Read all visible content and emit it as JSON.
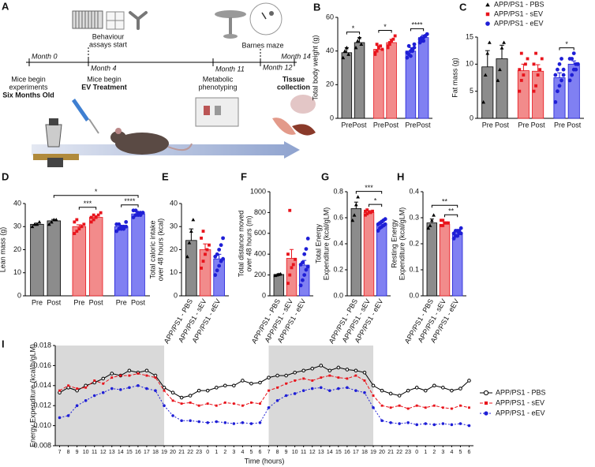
{
  "timeline": {
    "panel": "A",
    "months": [
      "Month 0",
      "Month 4",
      "Month 11",
      "Month 12",
      "Month 14"
    ],
    "behaviour": [
      "Behaviour",
      "assays start"
    ],
    "barnes": "Barnes maze",
    "start": [
      "Mice begin",
      "experiments",
      "Six Months Old"
    ],
    "treatment": [
      "Mice begin",
      "EV Treatment"
    ],
    "metabolic": [
      "Metabolic",
      "phenotyping"
    ],
    "tissue": [
      "Tissue",
      "collection"
    ]
  },
  "chart_data": [
    {
      "type": "bar",
      "panel": "B",
      "ylabel": [
        "Total body weight (g)"
      ],
      "categories": [
        "Pre",
        "Post",
        "Pre",
        "Post",
        "Pre",
        "Post"
      ],
      "values": [
        39,
        45,
        41,
        45,
        40,
        48
      ],
      "errors": [
        3,
        3,
        2,
        2,
        2,
        1.5
      ],
      "points": [
        [
          36,
          40,
          42,
          38
        ],
        [
          42,
          46,
          48,
          44
        ],
        [
          38,
          40,
          42,
          43,
          41,
          39,
          44
        ],
        [
          42,
          44,
          46,
          47,
          49,
          43,
          45
        ],
        [
          36,
          38,
          40,
          41,
          42,
          39,
          43,
          37,
          40,
          44
        ],
        [
          45,
          46,
          48,
          49,
          50,
          47,
          48,
          46,
          49,
          50
        ]
      ],
      "colors": [
        "#8c8c8c",
        "#8c8c8c",
        "#f28b8b",
        "#f28b8b",
        "#8080f2",
        "#8080f2"
      ],
      "point_colors": [
        "#000000",
        "#000000",
        "#e8141c",
        "#e8141c",
        "#1f1fd6",
        "#1f1fd6"
      ],
      "markers": [
        "triangle",
        "triangle",
        "square",
        "square",
        "circle",
        "circle"
      ],
      "ylim": [
        0,
        60
      ],
      "yticks": [
        0,
        20,
        40,
        60
      ],
      "significance": [
        {
          "label": "*",
          "between": [
            0,
            1
          ]
        },
        {
          "label": "*",
          "between": [
            2,
            3
          ]
        },
        {
          "label": "****",
          "between": [
            4,
            5
          ]
        }
      ]
    },
    {
      "type": "bar",
      "panel": "C",
      "ylabel": [
        "Fat mass (g)"
      ],
      "categories": [
        "Pre",
        "Post",
        "Pre",
        "Post",
        "Pre",
        "Post"
      ],
      "values": [
        9.5,
        11,
        8.8,
        8.7,
        7.5,
        10
      ],
      "errors": [
        3,
        2.5,
        1.2,
        1.2,
        0.9,
        0.6
      ],
      "points": [
        [
          3,
          8,
          12,
          14
        ],
        [
          7,
          9,
          13,
          14
        ],
        [
          5,
          7,
          8,
          10,
          11,
          9,
          12
        ],
        [
          5,
          6,
          8,
          9,
          11,
          10,
          12
        ],
        [
          3,
          5,
          6,
          7,
          8,
          8,
          9,
          10,
          11,
          9
        ],
        [
          7,
          8,
          9,
          10,
          10,
          11,
          11,
          12,
          9,
          10
        ]
      ],
      "colors": [
        "#8c8c8c",
        "#8c8c8c",
        "#f28b8b",
        "#f28b8b",
        "#8080f2",
        "#8080f2"
      ],
      "point_colors": [
        "#000000",
        "#000000",
        "#e8141c",
        "#e8141c",
        "#1f1fd6",
        "#1f1fd6"
      ],
      "markers": [
        "triangle",
        "triangle",
        "square",
        "square",
        "circle",
        "circle"
      ],
      "ylim": [
        0,
        15
      ],
      "yticks": [
        0,
        5,
        10,
        15
      ],
      "significance": [
        {
          "label": "*",
          "between": [
            4,
            5
          ]
        }
      ],
      "legend": {
        "labels": [
          "APP/PS1 - PBS",
          "APP/PS1 - sEV",
          "APP/PS1 - eEV"
        ],
        "colors": [
          "#000000",
          "#e8141c",
          "#1f1fd6"
        ],
        "markers": [
          "triangle",
          "square",
          "circle"
        ]
      }
    },
    {
      "type": "bar",
      "panel": "D",
      "ylabel": [
        "Lean mass (g)"
      ],
      "categories": [
        "Pre",
        "Post",
        "Pre",
        "Post",
        "Pre",
        "Post"
      ],
      "values": [
        31,
        32.5,
        30,
        34,
        30,
        35.5
      ],
      "errors": [
        0.5,
        0.6,
        0.8,
        0.7,
        0.5,
        0.5
      ],
      "points": [
        [
          30,
          31,
          31,
          32
        ],
        [
          31,
          32,
          33,
          33
        ],
        [
          27,
          28,
          29,
          30,
          31,
          32,
          33
        ],
        [
          32,
          33,
          34,
          35,
          36,
          34,
          35
        ],
        [
          28,
          29,
          29,
          30,
          30,
          31,
          31,
          30,
          29,
          32
        ],
        [
          34,
          35,
          35,
          36,
          36,
          37,
          37,
          36,
          35,
          36
        ]
      ],
      "colors": [
        "#8c8c8c",
        "#8c8c8c",
        "#f28b8b",
        "#f28b8b",
        "#8080f2",
        "#8080f2"
      ],
      "point_colors": [
        "#000000",
        "#000000",
        "#e8141c",
        "#e8141c",
        "#1f1fd6",
        "#1f1fd6"
      ],
      "markers": [
        "triangle",
        "triangle",
        "square",
        "square",
        "circle",
        "circle"
      ],
      "ylim": [
        0,
        40
      ],
      "yticks": [
        0,
        10,
        20,
        30,
        40
      ],
      "significance": [
        {
          "label": "***",
          "between": [
            2,
            3
          ]
        },
        {
          "label": "****",
          "between": [
            4,
            5
          ]
        },
        {
          "label": "*",
          "between": [
            1,
            5
          ]
        }
      ]
    },
    {
      "type": "bar",
      "panel": "E",
      "ylabel": [
        "Total caloric intake",
        "over 48 hours (kcal)"
      ],
      "categories": [
        "APP/PS1 - PBS",
        "APP/PS1 - sEV",
        "APP/PS1 - eEV"
      ],
      "values": [
        24,
        20,
        16
      ],
      "errors": [
        5,
        2.5,
        2
      ],
      "points": [
        [
          17,
          23,
          28,
          33
        ],
        [
          12,
          15,
          18,
          20,
          22,
          25,
          28
        ],
        [
          9,
          11,
          13,
          15,
          16,
          17,
          18,
          20,
          22,
          25
        ]
      ],
      "colors": [
        "#8c8c8c",
        "#f28b8b",
        "#8080f2"
      ],
      "point_colors": [
        "#000000",
        "#e8141c",
        "#1f1fd6"
      ],
      "markers": [
        "triangle",
        "square",
        "circle"
      ],
      "ylim": [
        0,
        40
      ],
      "yticks": [
        0,
        10,
        20,
        30,
        40
      ],
      "significance": []
    },
    {
      "type": "bar",
      "panel": "F",
      "ylabel": [
        "Total distance moved",
        "over 48 hours (m)"
      ],
      "categories": [
        "APP/PS1 - PBS",
        "APP/PS1 - sEV",
        "APP/PS1 - eEV"
      ],
      "values": [
        205,
        360,
        295
      ],
      "errors": [
        8,
        85,
        45
      ],
      "points": [
        [
          195,
          200,
          205,
          210
        ],
        [
          120,
          200,
          270,
          300,
          350,
          400,
          820
        ],
        [
          100,
          150,
          200,
          250,
          280,
          300,
          320,
          400,
          450,
          550
        ]
      ],
      "colors": [
        "#8c8c8c",
        "#f28b8b",
        "#8080f2"
      ],
      "point_colors": [
        "#000000",
        "#e8141c",
        "#1f1fd6"
      ],
      "markers": [
        "triangle",
        "square",
        "circle"
      ],
      "ylim": [
        0,
        1000
      ],
      "yticks": [
        0,
        200,
        400,
        600,
        800,
        1000
      ],
      "significance": []
    },
    {
      "type": "bar",
      "panel": "G",
      "ylabel": [
        "Total Energy",
        "Expenditure (kcal/gLM)"
      ],
      "categories": [
        "APP/PS1 - PBS",
        "APP/PS1 - sEV",
        "APP/PS1 - eEV"
      ],
      "values": [
        0.67,
        0.64,
        0.55
      ],
      "errors": [
        0.05,
        0.015,
        0.01
      ],
      "points": [
        [
          0.58,
          0.62,
          0.7,
          0.76
        ],
        [
          0.62,
          0.63,
          0.64,
          0.64,
          0.65,
          0.65,
          0.66
        ],
        [
          0.5,
          0.52,
          0.53,
          0.54,
          0.55,
          0.55,
          0.56,
          0.57,
          0.58,
          0.59
        ]
      ],
      "colors": [
        "#8c8c8c",
        "#f28b8b",
        "#8080f2"
      ],
      "point_colors": [
        "#000000",
        "#e8141c",
        "#1f1fd6"
      ],
      "markers": [
        "triangle",
        "square",
        "circle"
      ],
      "ylim": [
        0,
        0.8
      ],
      "yticks": [
        {
          "value": 0,
          "label": "0.0"
        },
        0.2,
        0.4,
        0.6,
        0.8
      ],
      "significance": [
        {
          "label": "*",
          "between": [
            1,
            2
          ]
        },
        {
          "label": "***",
          "between": [
            0,
            2
          ]
        }
      ]
    },
    {
      "type": "bar",
      "panel": "H",
      "ylabel": [
        "Resting Energy",
        "Expenditure (kcal/gLM)"
      ],
      "categories": [
        "APP/PS1 - PBS",
        "APP/PS1 - sEV",
        "APP/PS1 - eEV"
      ],
      "values": [
        0.28,
        0.275,
        0.24
      ],
      "errors": [
        0.015,
        0.006,
        0.005
      ],
      "points": [
        [
          0.26,
          0.27,
          0.29,
          0.31
        ],
        [
          0.27,
          0.27,
          0.28,
          0.28,
          0.28,
          0.29,
          0.29
        ],
        [
          0.22,
          0.23,
          0.23,
          0.24,
          0.24,
          0.24,
          0.25,
          0.25,
          0.25,
          0.26
        ]
      ],
      "colors": [
        "#8c8c8c",
        "#f28b8b",
        "#8080f2"
      ],
      "point_colors": [
        "#000000",
        "#e8141c",
        "#1f1fd6"
      ],
      "markers": [
        "triangle",
        "square",
        "circle"
      ],
      "ylim": [
        0,
        0.4
      ],
      "yticks": [
        {
          "value": 0,
          "label": "0.0"
        },
        0.1,
        0.2,
        0.3,
        0.4
      ],
      "significance": [
        {
          "label": "**",
          "between": [
            1,
            2
          ]
        },
        {
          "label": "**",
          "between": [
            0,
            2
          ]
        }
      ]
    },
    {
      "type": "line",
      "panel": "I",
      "ylabel": [
        "Energy Expenditure (kcal/h/gLM)"
      ],
      "xlabel": "Time (hours)",
      "categories": [
        "7",
        "8",
        "9",
        "10",
        "11",
        "12",
        "13",
        "14",
        "15",
        "16",
        "17",
        "18",
        "19",
        "20",
        "21",
        "22",
        "23",
        "0",
        "1",
        "2",
        "3",
        "4",
        "5",
        "6",
        "7",
        "8",
        "9",
        "10",
        "11",
        "12",
        "13",
        "14",
        "15",
        "16",
        "17",
        "18",
        "19",
        "20",
        "21",
        "22",
        "23",
        "0",
        "1",
        "2",
        "3",
        "4",
        "5",
        "6"
      ],
      "ylim": [
        0.008,
        0.018
      ],
      "yticks": [
        {
          "value": 0.008,
          "label": "0.008"
        },
        {
          "value": 0.01,
          "label": "0.010"
        },
        {
          "value": 0.012,
          "label": "0.012"
        },
        {
          "value": 0.014,
          "label": "0.014"
        },
        {
          "value": 0.016,
          "label": "0.016"
        },
        {
          "value": 0.018,
          "label": "0.018"
        }
      ],
      "series": [
        {
          "name": "APP/PS1 - PBS",
          "color": "#000000",
          "marker": "open-circle",
          "values": [
            0.0133,
            0.0138,
            0.0135,
            0.014,
            0.0143,
            0.0147,
            0.0152,
            0.015,
            0.0155,
            0.0153,
            0.0155,
            0.015,
            0.0138,
            0.0133,
            0.0128,
            0.013,
            0.0135,
            0.0135,
            0.0138,
            0.014,
            0.014,
            0.0145,
            0.0142,
            0.0143,
            0.0148,
            0.015,
            0.015,
            0.0153,
            0.0155,
            0.0157,
            0.016,
            0.0155,
            0.0158,
            0.0156,
            0.0155,
            0.0153,
            0.014,
            0.0135,
            0.0132,
            0.013,
            0.0135,
            0.0138,
            0.0135,
            0.014,
            0.0138,
            0.0135,
            0.0137,
            0.0145
          ]
        },
        {
          "name": "APP/PS1 - sEV",
          "color": "#e8141c",
          "marker": "square",
          "values": [
            0.0135,
            0.014,
            0.0137,
            0.0138,
            0.0145,
            0.0142,
            0.0148,
            0.015,
            0.015,
            0.0152,
            0.015,
            0.0148,
            0.0135,
            0.0125,
            0.0122,
            0.0123,
            0.012,
            0.0122,
            0.012,
            0.0123,
            0.0122,
            0.012,
            0.0123,
            0.0122,
            0.0135,
            0.0138,
            0.0142,
            0.0145,
            0.0147,
            0.0145,
            0.0148,
            0.015,
            0.0148,
            0.0147,
            0.015,
            0.0145,
            0.013,
            0.012,
            0.0118,
            0.012,
            0.0117,
            0.012,
            0.0118,
            0.012,
            0.0118,
            0.0117,
            0.012,
            0.0118
          ]
        },
        {
          "name": "APP/PS1 - eEV",
          "color": "#1f1fd6",
          "marker": "circle",
          "values": [
            0.0108,
            0.011,
            0.012,
            0.0125,
            0.013,
            0.0133,
            0.0137,
            0.0136,
            0.0138,
            0.014,
            0.0137,
            0.0135,
            0.012,
            0.011,
            0.0105,
            0.0105,
            0.0104,
            0.0103,
            0.0104,
            0.0103,
            0.0102,
            0.0103,
            0.0102,
            0.0103,
            0.0118,
            0.0125,
            0.013,
            0.0132,
            0.0135,
            0.0137,
            0.0138,
            0.0135,
            0.0137,
            0.0138,
            0.0135,
            0.0133,
            0.0118,
            0.0105,
            0.0103,
            0.0102,
            0.0103,
            0.0101,
            0.0102,
            0.0101,
            0.0102,
            0.0101,
            0.0102,
            0.01
          ]
        }
      ]
    }
  ]
}
